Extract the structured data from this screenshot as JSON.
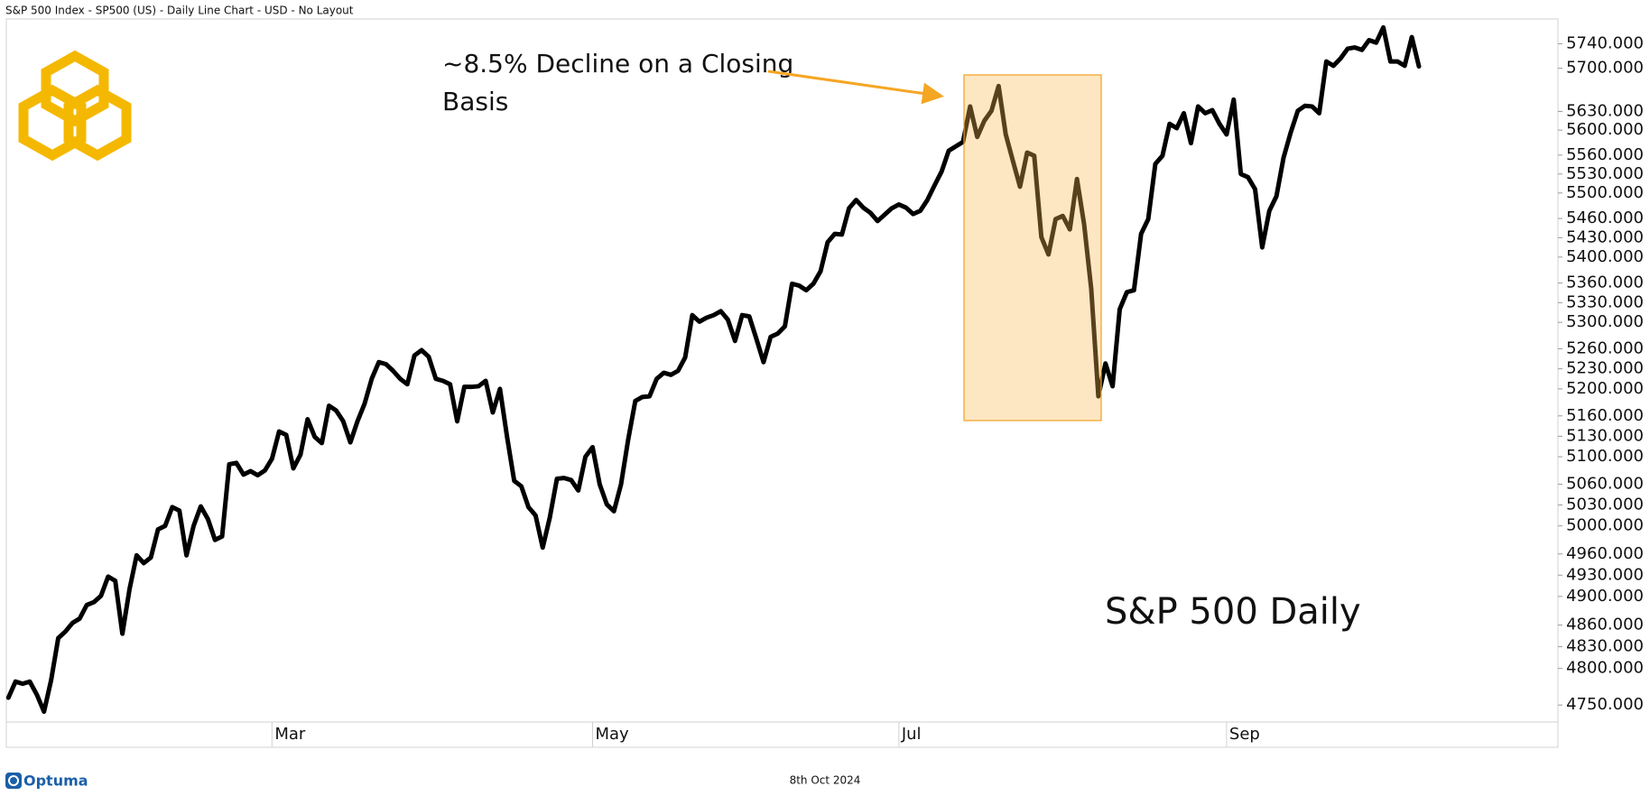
{
  "chart_data": {
    "type": "line",
    "title": "S&P 500 Index  - SP500 (US) - Daily Line Chart - USD - No Layout",
    "annotation_lines": [
      "~8.5% Decline on a Closing",
      "Basis"
    ],
    "series_label": "S&P 500 Daily",
    "date_label": "8th Oct 2024",
    "brand": "Optuma",
    "color": "#000000",
    "highlight_color": "#f0a020",
    "ylog": true,
    "grid": false,
    "ylim": [
      4727,
      5781
    ],
    "yticks": [
      {
        "value": 4750,
        "label": "4750.000"
      },
      {
        "value": 4800,
        "label": "4800.000"
      },
      {
        "value": 4830,
        "label": "4830.000"
      },
      {
        "value": 4860,
        "label": "4860.000"
      },
      {
        "value": 4900,
        "label": "4900.000"
      },
      {
        "value": 4930,
        "label": "4930.000"
      },
      {
        "value": 4960,
        "label": "4960.000"
      },
      {
        "value": 5000,
        "label": "5000.000"
      },
      {
        "value": 5030,
        "label": "5030.000"
      },
      {
        "value": 5060,
        "label": "5060.000"
      },
      {
        "value": 5100,
        "label": "5100.000"
      },
      {
        "value": 5130,
        "label": "5130.000"
      },
      {
        "value": 5160,
        "label": "5160.000"
      },
      {
        "value": 5200,
        "label": "5200.000"
      },
      {
        "value": 5230,
        "label": "5230.000"
      },
      {
        "value": 5260,
        "label": "5260.000"
      },
      {
        "value": 5300,
        "label": "5300.000"
      },
      {
        "value": 5330,
        "label": "5330.000"
      },
      {
        "value": 5360,
        "label": "5360.000"
      },
      {
        "value": 5400,
        "label": "5400.000"
      },
      {
        "value": 5430,
        "label": "5430.000"
      },
      {
        "value": 5460,
        "label": "5460.000"
      },
      {
        "value": 5500,
        "label": "5500.000"
      },
      {
        "value": 5530,
        "label": "5530.000"
      },
      {
        "value": 5560,
        "label": "5560.000"
      },
      {
        "value": 5600,
        "label": "5600.000"
      },
      {
        "value": 5630,
        "label": "5630.000"
      },
      {
        "value": 5700,
        "label": "5700.000"
      },
      {
        "value": 5740,
        "label": "5740.000"
      }
    ],
    "categories": [
      null,
      null,
      null,
      null,
      null,
      null,
      null,
      null,
      null,
      null,
      null,
      null,
      null,
      null,
      null,
      null,
      null,
      null,
      null,
      null,
      null,
      null,
      null,
      null,
      null,
      null,
      null,
      null,
      null,
      null,
      null,
      null,
      null,
      null,
      null,
      null,
      null,
      "Mar",
      null,
      null,
      null,
      null,
      null,
      null,
      null,
      null,
      null,
      null,
      null,
      null,
      null,
      null,
      null,
      null,
      null,
      null,
      null,
      null,
      null,
      null,
      null,
      null,
      null,
      null,
      null,
      null,
      null,
      null,
      null,
      null,
      null,
      null,
      null,
      null,
      null,
      null,
      null,
      null,
      null,
      null,
      null,
      null,
      "May",
      null,
      null,
      null,
      null,
      null,
      null,
      null,
      null,
      null,
      null,
      null,
      null,
      null,
      null,
      null,
      null,
      null,
      null,
      null,
      null,
      null,
      null,
      null,
      null,
      null,
      null,
      null,
      null,
      null,
      null,
      null,
      null,
      null,
      null,
      null,
      null,
      null,
      null,
      null,
      null,
      null,
      null,
      "Jul",
      null,
      null,
      null,
      null,
      null,
      null,
      null,
      null,
      null,
      null,
      null,
      null,
      null,
      null,
      null,
      null,
      null,
      null,
      null,
      null,
      null,
      null,
      null,
      null,
      null,
      null,
      null,
      null,
      null,
      null,
      null,
      null,
      null,
      null,
      null,
      null,
      null,
      null,
      null,
      null,
      null,
      null,
      null,
      null,
      null,
      "Sep",
      null,
      null,
      null,
      null,
      null,
      null,
      null,
      null,
      null,
      null,
      null,
      null,
      null,
      null,
      null,
      null,
      null,
      null,
      null,
      null,
      null,
      null,
      null,
      null,
      null,
      null,
      null
    ],
    "values": [
      4760,
      4782,
      4779,
      4782,
      4764,
      4741,
      4784,
      4842,
      4851,
      4863,
      4869,
      4888,
      4892,
      4901,
      4928,
      4922,
      4848,
      4910,
      4958,
      4947,
      4955,
      4995,
      5000,
      5027,
      5022,
      4958,
      5000,
      5028,
      5010,
      4980,
      4985,
      5089,
      5091,
      5074,
      5079,
      5073,
      5080,
      5097,
      5137,
      5132,
      5083,
      5103,
      5155,
      5129,
      5120,
      5175,
      5168,
      5152,
      5121,
      5152,
      5178,
      5215,
      5240,
      5237,
      5227,
      5215,
      5207,
      5250,
      5258,
      5248,
      5215,
      5212,
      5207,
      5152,
      5203,
      5203,
      5204,
      5212,
      5165,
      5200,
      5129,
      5065,
      5057,
      5027,
      5015,
      4969,
      5012,
      5068,
      5069,
      5066,
      5051,
      5100,
      5114,
      5060,
      5031,
      5021,
      5060,
      5125,
      5182,
      5188,
      5189,
      5215,
      5224,
      5221,
      5227,
      5247,
      5311,
      5301,
      5307,
      5311,
      5317,
      5304,
      5272,
      5311,
      5309,
      5275,
      5240,
      5278,
      5283,
      5294,
      5359,
      5356,
      5349,
      5359,
      5378,
      5423,
      5436,
      5435,
      5476,
      5489,
      5477,
      5469,
      5456,
      5466,
      5476,
      5482,
      5477,
      5467,
      5472,
      5489,
      5512,
      5534,
      5567,
      5574,
      5581,
      5638,
      5589,
      5615,
      5631,
      5671,
      5593,
      5551,
      5510,
      5564,
      5559,
      5431,
      5404,
      5459,
      5464,
      5443,
      5522,
      5451,
      5351,
      5189,
      5238,
      5204,
      5320,
      5346,
      5349,
      5436,
      5459,
      5546,
      5559,
      5610,
      5603,
      5627,
      5579,
      5638,
      5627,
      5632,
      5610,
      5593,
      5649,
      5530,
      5525,
      5506,
      5415,
      5472,
      5495,
      5556,
      5596,
      5631,
      5639,
      5638,
      5627,
      5711,
      5704,
      5716,
      5732,
      5734,
      5730,
      5746,
      5742,
      5767,
      5711,
      5711,
      5704,
      5751,
      5703
    ]
  }
}
